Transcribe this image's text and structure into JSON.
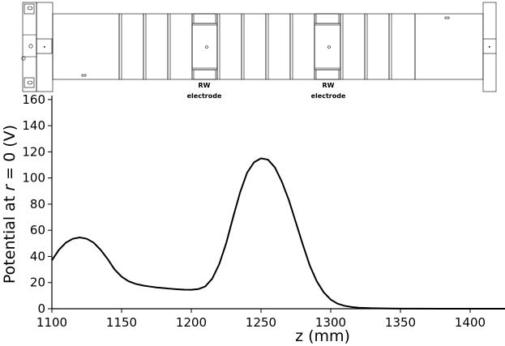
{
  "schematic": {
    "electrode_labels": [
      {
        "line1": "RW",
        "line2": "electrode"
      },
      {
        "line1": "RW",
        "line2": "electrode"
      }
    ]
  },
  "chart_data": {
    "type": "line",
    "title": "",
    "xlabel": "z (mm)",
    "ylabel_parts": [
      "Potential at ",
      "r",
      " = 0 (V)"
    ],
    "xlim": [
      1100,
      1425
    ],
    "ylim": [
      0,
      163
    ],
    "xticks": [
      1100,
      1150,
      1200,
      1250,
      1300,
      1350,
      1400
    ],
    "yticks": [
      0,
      20,
      40,
      60,
      80,
      100,
      120,
      140,
      160
    ],
    "grid": false,
    "line_color": "#000000",
    "series": [
      {
        "x": [
          1100,
          1105,
          1110,
          1115,
          1120,
          1125,
          1130,
          1135,
          1140,
          1145,
          1150,
          1155,
          1160,
          1165,
          1170,
          1175,
          1180,
          1185,
          1190,
          1195,
          1200,
          1205,
          1210,
          1215,
          1220,
          1225,
          1230,
          1235,
          1240,
          1245,
          1250,
          1255,
          1260,
          1265,
          1270,
          1275,
          1280,
          1285,
          1290,
          1295,
          1300,
          1305,
          1310,
          1315,
          1320,
          1330,
          1340,
          1350,
          1360,
          1380,
          1400,
          1425
        ],
        "y": [
          37,
          45,
          50.5,
          53.5,
          54.5,
          53.5,
          50.5,
          45,
          38,
          30,
          24.5,
          21,
          19,
          17.8,
          17,
          16.3,
          15.8,
          15.3,
          14.9,
          14.6,
          14.5,
          15,
          17,
          23,
          34,
          50,
          70,
          89,
          104,
          112,
          115,
          114,
          108,
          97,
          83,
          66,
          49,
          33,
          21,
          12.5,
          7,
          3.8,
          2.2,
          1.3,
          0.8,
          0.4,
          0.2,
          0.1,
          0.05,
          0.02,
          0,
          0
        ]
      }
    ]
  }
}
